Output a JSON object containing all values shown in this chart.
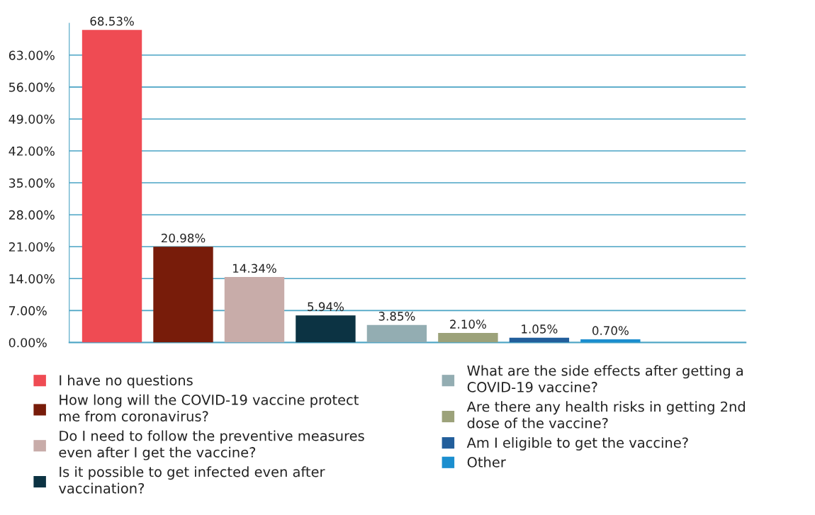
{
  "chart_data": {
    "type": "bar",
    "categories": [
      null,
      null,
      null,
      null,
      null,
      null,
      null,
      null
    ],
    "stacked": true,
    "series": [
      {
        "name": "I have no questions",
        "color": "#ef4b53",
        "values": [
          68.53,
          null,
          null,
          null,
          null,
          null,
          null,
          null
        ],
        "value_labels": [
          "68.53%",
          null,
          null,
          null,
          null,
          null,
          null,
          null
        ]
      },
      {
        "name": "How long will the COVID-19 vaccine protect me from coronavirus?",
        "color": "#781c0a",
        "values": [
          null,
          20.98,
          null,
          null,
          null,
          null,
          null,
          null
        ],
        "value_labels": [
          null,
          "20.98%",
          null,
          null,
          null,
          null,
          null,
          null
        ]
      },
      {
        "name": "Do I need to follow the preventive measures even after I get the vaccine?",
        "color": "#c8aca9",
        "values": [
          null,
          null,
          14.34,
          null,
          null,
          null,
          null,
          null
        ],
        "value_labels": [
          null,
          null,
          "14.34%",
          null,
          null,
          null,
          null,
          null
        ]
      },
      {
        "name": "Is it possible to get infected even after vaccination?",
        "color": "#0c3343",
        "values": [
          null,
          null,
          null,
          5.94,
          null,
          null,
          null,
          null
        ],
        "value_labels": [
          null,
          null,
          null,
          "5.94%",
          null,
          null,
          null,
          null
        ]
      },
      {
        "name": "What are the side effects after getting a COVID-19 vaccine?",
        "color": "#93adb2",
        "values": [
          null,
          null,
          null,
          null,
          3.85,
          null,
          null,
          null
        ],
        "value_labels": [
          null,
          null,
          null,
          null,
          "3.85%",
          null,
          null,
          null
        ]
      },
      {
        "name": "Are there any health risks in getting 2nd dose of the vaccine?",
        "color": "#9ca27a",
        "values": [
          null,
          null,
          null,
          null,
          null,
          2.1,
          null,
          null
        ],
        "value_labels": [
          null,
          null,
          null,
          null,
          null,
          "2.10%",
          null,
          null
        ]
      },
      {
        "name": "Am I eligible to get the vaccine?",
        "color": "#225e9b",
        "values": [
          null,
          null,
          null,
          null,
          null,
          null,
          1.05,
          null
        ],
        "value_labels": [
          null,
          null,
          null,
          null,
          null,
          null,
          "1.05%",
          null
        ]
      },
      {
        "name": "Other",
        "color": "#1b8ecf",
        "values": [
          null,
          null,
          null,
          null,
          null,
          null,
          null,
          0.7
        ],
        "value_labels": [
          null,
          null,
          null,
          null,
          null,
          null,
          null,
          "0.70%"
        ]
      }
    ],
    "ylim": [
      0,
      70
    ],
    "yticks": [
      {
        "value": 0,
        "label": "0.00%"
      },
      {
        "value": 7,
        "label": "7.00%"
      },
      {
        "value": 14,
        "label": "14.00%"
      },
      {
        "value": 21,
        "label": "21.00%"
      },
      {
        "value": 28,
        "label": "28.00%"
      },
      {
        "value": 35,
        "label": "35.00%"
      },
      {
        "value": 42,
        "label": "42.00%"
      },
      {
        "value": 49,
        "label": "49.00%"
      },
      {
        "value": 56,
        "label": "56.00%"
      },
      {
        "value": 63,
        "label": "63.00%"
      }
    ],
    "grid": "y",
    "legend": "bottom",
    "tick_labels": "y"
  }
}
